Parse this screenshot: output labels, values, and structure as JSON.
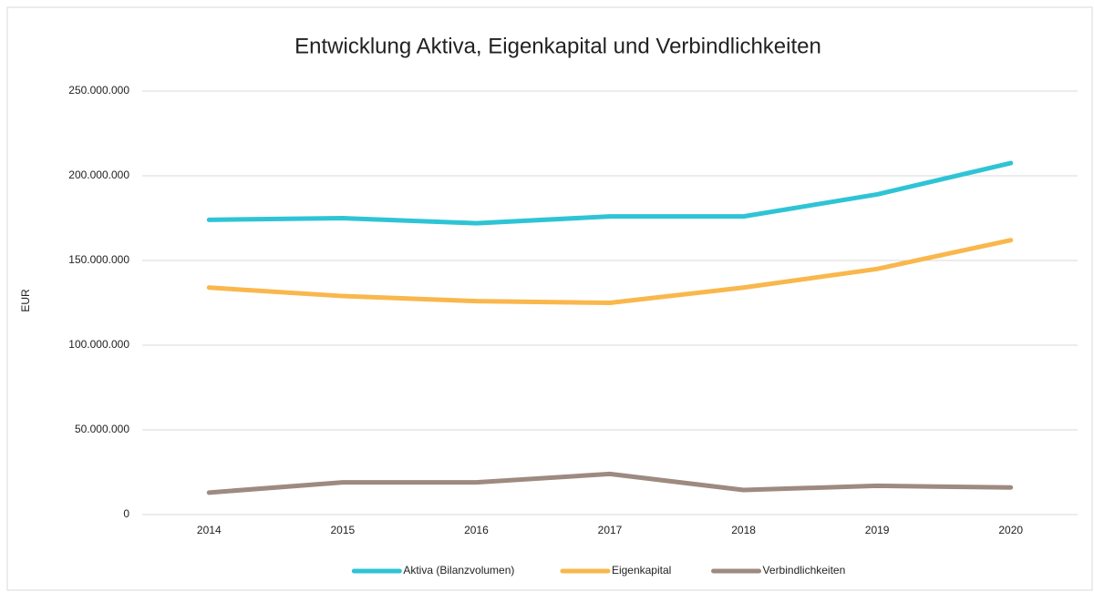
{
  "chart_data": {
    "type": "line",
    "title": "Entwicklung Aktiva, Eigenkapital und Verbindlichkeiten",
    "y_label": "EUR",
    "categories": [
      "2014",
      "2015",
      "2016",
      "2017",
      "2018",
      "2019",
      "2020"
    ],
    "series": [
      {
        "name": "Aktiva (Bilanzvolumen)",
        "color": "#2ec4d6",
        "values": [
          174000000,
          175000000,
          172000000,
          176000000,
          176000000,
          189000000,
          207500000
        ]
      },
      {
        "name": "Eigenkapital",
        "color": "#f9b74c",
        "values": [
          134000000,
          129000000,
          126000000,
          125000000,
          134000000,
          145000000,
          162000000
        ]
      },
      {
        "name": "Verbindlichkeiten",
        "color": "#9e8a80",
        "values": [
          13000000,
          19000000,
          19000000,
          24000000,
          14500000,
          17000000,
          16000000
        ]
      }
    ],
    "ylim": [
      0,
      250000000
    ],
    "yticks": [
      0,
      {
        "value": 50000000,
        "label": "50.000.000"
      },
      {
        "value": 100000000,
        "label": "100.000.000"
      },
      {
        "value": 150000000,
        "label": "150.000.000"
      },
      {
        "value": 200000000,
        "label": "200.000.000"
      },
      {
        "value": 250000000,
        "label": "250.000.000"
      }
    ],
    "grid": true,
    "legend": "bottom"
  }
}
